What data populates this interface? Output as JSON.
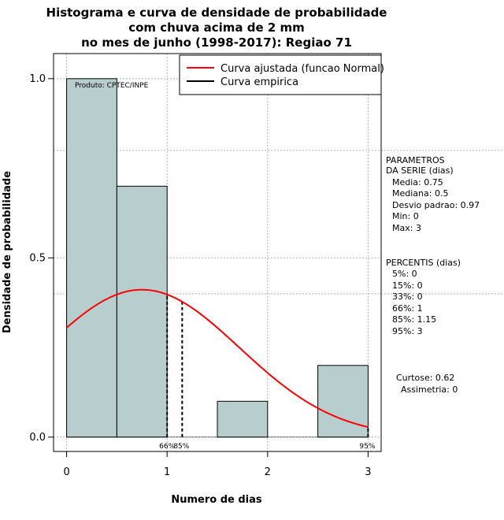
{
  "chart_data": {
    "type": "bar",
    "title_lines": [
      "Histograma e curva de densidade de probabilidade",
      "com chuva acima de 2 mm",
      "no mes de junho (1998-2017): Regiao 71"
    ],
    "xlabel": "Numero de dias",
    "ylabel": "Densidade de probabilidade",
    "xlim": [
      -0.13,
      3.13
    ],
    "ylim": [
      -0.04,
      1.07
    ],
    "x_ticks": [
      0,
      1,
      2,
      3
    ],
    "x_tick_labels": [
      "0",
      "1",
      "2",
      "3"
    ],
    "y_ticks": [
      0.0,
      0.5,
      1.0
    ],
    "y_tick_labels": [
      "0.0",
      "0.5",
      "1.0"
    ],
    "grid": true,
    "bins": [
      {
        "x0": 0.0,
        "x1": 0.5,
        "density": 1.0
      },
      {
        "x0": 0.5,
        "x1": 1.0,
        "density": 0.7
      },
      {
        "x0": 1.0,
        "x1": 1.5,
        "density": 0.0
      },
      {
        "x0": 1.5,
        "x1": 2.0,
        "density": 0.1
      },
      {
        "x0": 2.0,
        "x1": 2.5,
        "density": 0.0
      },
      {
        "x0": 2.5,
        "x1": 3.0,
        "density": 0.2
      }
    ],
    "bar_color": "#b8cece",
    "normal_curve": {
      "mean": 0.75,
      "sd": 0.97,
      "x_from": 0,
      "x_to": 3,
      "color": "#ff0000"
    },
    "percentile_lines": [
      {
        "x": 1.0,
        "label": "66%"
      },
      {
        "x": 1.15,
        "label": "85%"
      },
      {
        "x": 3.0,
        "label": "95%"
      }
    ],
    "legend": [
      {
        "label": "Curva ajustada (funcao Normal)",
        "color": "#ff0000"
      },
      {
        "label": "Curva empirica",
        "color": "#000000"
      }
    ],
    "credit": "Produto: CPTEC/INPE"
  },
  "side_panel": {
    "params_title": [
      "PARAMETROS",
      "DA SERIE (dias)"
    ],
    "params": [
      "Media: 0.75",
      "Mediana: 0.5",
      "Desvio padrao: 0.97",
      "Min: 0",
      "Max: 3"
    ],
    "percentis_title": "PERCENTIS (dias)",
    "percentis": [
      "5%: 0",
      "15%: 0",
      "33%: 0",
      "66%: 1",
      "85%: 1.15",
      "95%: 3"
    ],
    "curtose": "Curtose: 0.62",
    "assimetria": "Assimetria: 0"
  }
}
